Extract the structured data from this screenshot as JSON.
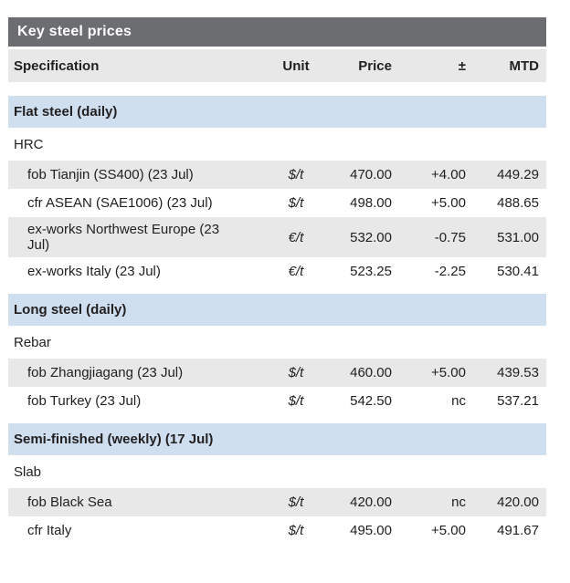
{
  "colors": {
    "title_bar_bg": "#6c6d70",
    "title_text": "#ffffff",
    "header_row_bg": "#e8e8e9",
    "section_bar_bg": "#cfdff0",
    "row_shade_bg": "#e8e8e9",
    "text": "#232021",
    "page_bg": "#ffffff"
  },
  "chart_data": {
    "type": "table",
    "title": "Key steel prices",
    "columns": {
      "spec": "Specification",
      "unit": "Unit",
      "price": "Price",
      "change": "±",
      "mtd": "MTD"
    },
    "sections": [
      {
        "label": "Flat steel (daily)",
        "groups": [
          {
            "name": "HRC",
            "rows": [
              {
                "spec": "fob Tianjin (SS400) (23 Jul)",
                "unit": "$/t",
                "price": "470.00",
                "change": "+4.00",
                "mtd": "449.29"
              },
              {
                "spec": "cfr ASEAN (SAE1006) (23 Jul)",
                "unit": "$/t",
                "price": "498.00",
                "change": "+5.00",
                "mtd": "488.65"
              },
              {
                "spec": "ex-works Northwest Europe (23\nJul)",
                "unit": "€/t",
                "price": "532.00",
                "change": "-0.75",
                "mtd": "531.00"
              },
              {
                "spec": "ex-works Italy (23 Jul)",
                "unit": "€/t",
                "price": "523.25",
                "change": "-2.25",
                "mtd": "530.41"
              }
            ]
          }
        ]
      },
      {
        "label": "Long steel (daily)",
        "groups": [
          {
            "name": "Rebar",
            "rows": [
              {
                "spec": "fob Zhangjiagang (23 Jul)",
                "unit": "$/t",
                "price": "460.00",
                "change": "+5.00",
                "mtd": "439.53"
              },
              {
                "spec": "fob Turkey (23 Jul)",
                "unit": "$/t",
                "price": "542.50",
                "change": "nc",
                "mtd": "537.21"
              }
            ]
          }
        ]
      },
      {
        "label": "Semi-finished (weekly) (17 Jul)",
        "groups": [
          {
            "name": "Slab",
            "rows": [
              {
                "spec": "fob Black Sea",
                "unit": "$/t",
                "price": "420.00",
                "change": "nc",
                "mtd": "420.00"
              },
              {
                "spec": "cfr Italy",
                "unit": "$/t",
                "price": "495.00",
                "change": "+5.00",
                "mtd": "491.67"
              }
            ]
          }
        ]
      }
    ]
  }
}
